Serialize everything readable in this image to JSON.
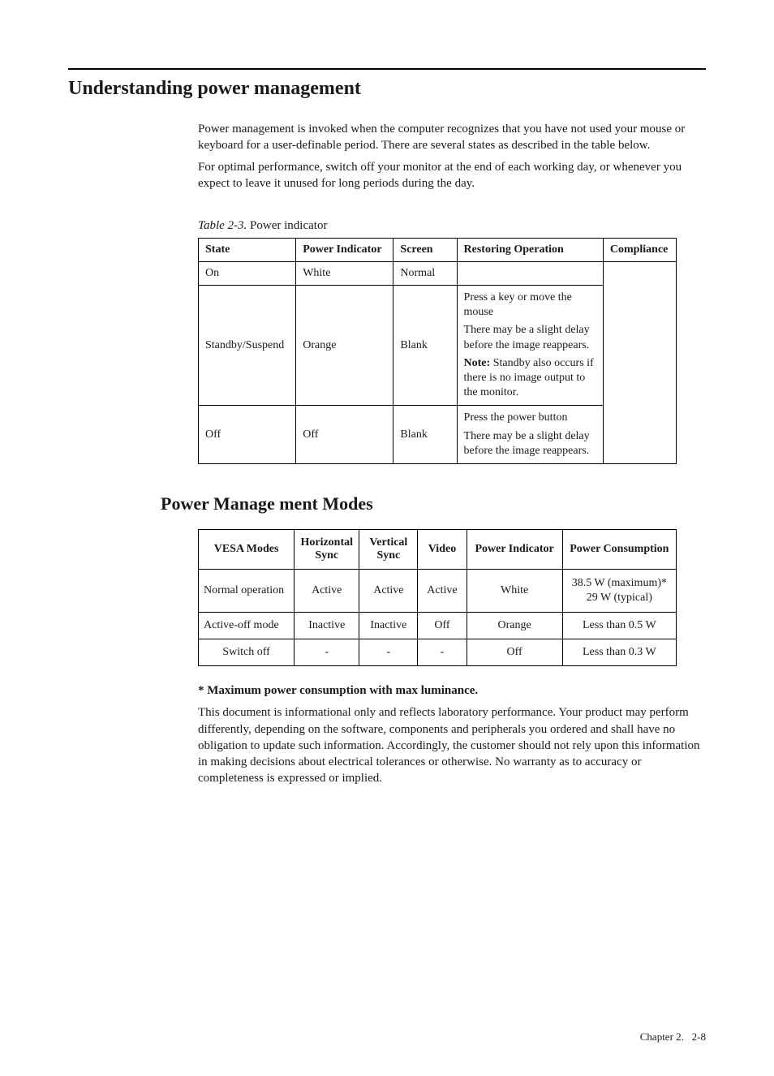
{
  "heading": "Understanding power management",
  "intro": {
    "p1": "Power management is invoked when the computer recognizes that you have not used your mouse or keyboard for a user-definable period. There are several states as described in the table below.",
    "p2": "For optimal performance, switch off your monitor at the end of each working day, or whenever you expect to leave it unused for long periods during the day."
  },
  "table1": {
    "caption_label": "Table 2-3.",
    "caption_text": " Power indicator",
    "headers": {
      "state": "State",
      "power_indicator": "Power Indicator",
      "screen": "Screen",
      "restoring": "Restoring Operation",
      "compliance": "Compliance"
    },
    "rows": {
      "r0": {
        "state": "On",
        "pi": "White",
        "screen": "Normal",
        "restore": "",
        "compliance": ""
      },
      "r1": {
        "state": "Standby/Suspend",
        "pi": "Orange",
        "screen": "Blank",
        "restore_l1": "Press a key or move the mouse",
        "restore_l2": "There may be a slight delay before the image reappears.",
        "restore_note_label": "Note:",
        "restore_note_text": " Standby also occurs if there is no image output to the monitor.",
        "compliance": ""
      },
      "r2": {
        "state": "Off",
        "pi": "Off",
        "screen": "Blank",
        "restore_l1": "Press the power button",
        "restore_l2": "There may be a slight delay before the image reappears.",
        "compliance": ""
      }
    },
    "col_widths": {
      "state": "120",
      "pi": "120",
      "screen": "78",
      "restore": "180",
      "compliance": "90"
    }
  },
  "subheading": "Power Manage ment Modes",
  "table2": {
    "headers": {
      "vesa": "VESA Modes",
      "hsync": "Horizontal Sync",
      "vsync": "Vertical Sync",
      "video": "Video",
      "pi": "Power Indicator",
      "pc": "Power Consumption"
    },
    "rows": {
      "r0": {
        "vesa": "Normal operation",
        "h": "Active",
        "v": "Active",
        "vid": "Active",
        "pi": "White",
        "pc1": "38.5 W (maximum)*",
        "pc2": "29 W (typical)"
      },
      "r1": {
        "vesa": "Active-off mode",
        "h": "Inactive",
        "v": "Inactive",
        "vid": "Off",
        "pi": "Orange",
        "pc": "Less than 0.5 W"
      },
      "r2": {
        "vesa": "Switch off",
        "h": "-",
        "v": "-",
        "vid": "-",
        "pi": "Off",
        "pc": "Less than 0.3 W"
      }
    },
    "col_widths": {
      "vesa": "118",
      "h": "80",
      "v": "72",
      "vid": "60",
      "pi": "118",
      "pc": "140"
    }
  },
  "footnote_bold": "* Maximum power consumption with max luminance.",
  "disclaimer": "This document is informational only and reflects laboratory performance. Your product may perform differently, depending on the software, components and peripherals you ordered and shall have no obligation to update such information. Accordingly, the customer should not rely upon this information in making decisions about electrical tolerances or otherwise. No warranty as to accuracy or completeness is expressed or implied.",
  "footer": {
    "chapter": "Chapter 2.",
    "page": "2-8"
  }
}
